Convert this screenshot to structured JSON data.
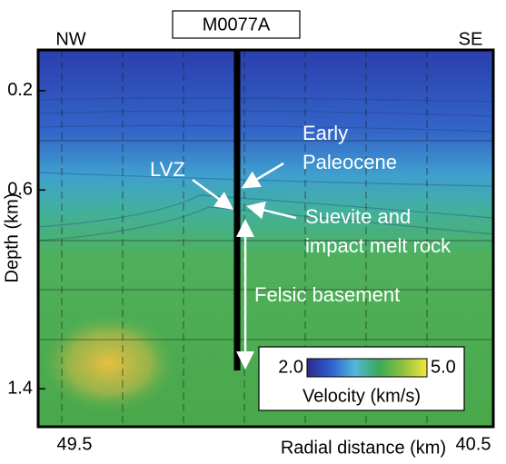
{
  "chart_data": {
    "type": "image",
    "title": "M0077A",
    "x_label": "Radial distance (km)",
    "y_label": "Depth (km)",
    "xlim": [
      49.5,
      40.5
    ],
    "xticks": [
      49.5,
      40.5
    ],
    "ylim": [
      0.036,
      1.553
    ],
    "yticks": [
      0.2,
      0.6,
      1.4
    ],
    "corner_labels": [
      "NW",
      "SE"
    ],
    "annotations": [
      {
        "lines": [
          "LVZ"
        ]
      },
      {
        "lines": [
          "Early",
          "Paleocene"
        ]
      },
      {
        "lines": [
          "Suevite and",
          "impact melt rock"
        ]
      },
      {
        "lines": [
          "Felsic basement"
        ]
      }
    ],
    "colorbar": {
      "label": "Velocity (km/s)",
      "ticks": [
        {
          "value": 2,
          "label": "2.0"
        },
        {
          "value": 5,
          "label": "5.0"
        }
      ],
      "colors": [
        "#2b2a86",
        "#2f5fd0",
        "#52b8d8",
        "#3aa85a",
        "#8fc040",
        "#f0e83a"
      ]
    }
  }
}
